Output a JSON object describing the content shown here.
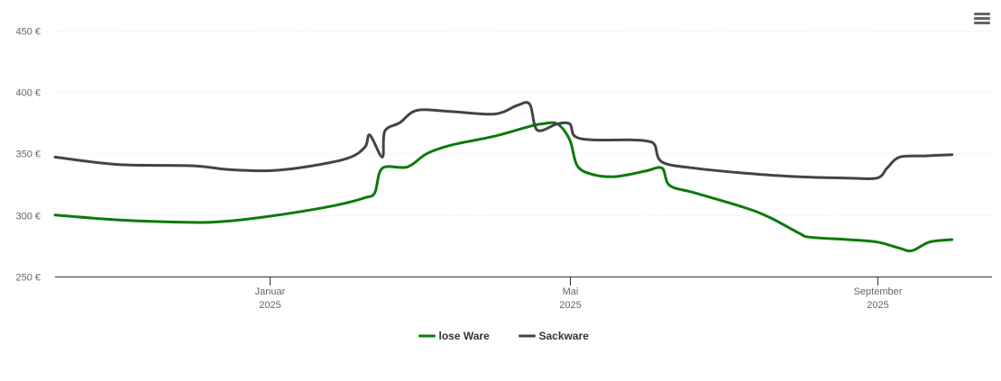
{
  "chart_data": {
    "type": "line",
    "y_ticks": [
      {
        "value": 450,
        "label": "450 €"
      },
      {
        "value": 400,
        "label": "400 €"
      },
      {
        "value": 350,
        "label": "350 €"
      },
      {
        "value": 300,
        "label": "300 €"
      },
      {
        "value": 250,
        "label": "250 €"
      }
    ],
    "ylim": [
      250,
      460
    ],
    "xlim": [
      "2024-10-07",
      "2025-10-17"
    ],
    "x_ticks": [
      {
        "date": "2025-01-01",
        "label": "Januar",
        "sublabel": "2025"
      },
      {
        "date": "2025-05-01",
        "label": "Mai",
        "sublabel": "2025"
      },
      {
        "date": "2025-09-01",
        "label": "September",
        "sublabel": "2025"
      }
    ],
    "grid": true,
    "legend_position": "bottom-center",
    "series": [
      {
        "name": "lose Ware",
        "color": "#0a7a0a",
        "points": [
          [
            "2024-10-07",
            300
          ],
          [
            "2024-11-01",
            296
          ],
          [
            "2024-12-01",
            294
          ],
          [
            "2024-12-15",
            295
          ],
          [
            "2025-01-01",
            299
          ],
          [
            "2025-01-20",
            305
          ],
          [
            "2025-02-01",
            310
          ],
          [
            "2025-02-08",
            314
          ],
          [
            "2025-02-12",
            318
          ],
          [
            "2025-02-15",
            338
          ],
          [
            "2025-02-25",
            339
          ],
          [
            "2025-03-05",
            350
          ],
          [
            "2025-03-15",
            357
          ],
          [
            "2025-04-01",
            364
          ],
          [
            "2025-04-15",
            372
          ],
          [
            "2025-04-20",
            374
          ],
          [
            "2025-04-26",
            374
          ],
          [
            "2025-05-01",
            361
          ],
          [
            "2025-05-04",
            340
          ],
          [
            "2025-05-10",
            333
          ],
          [
            "2025-05-18",
            331
          ],
          [
            "2025-05-25",
            333
          ],
          [
            "2025-06-01",
            336
          ],
          [
            "2025-06-07",
            338
          ],
          [
            "2025-06-10",
            324
          ],
          [
            "2025-06-20",
            318
          ],
          [
            "2025-07-10",
            306
          ],
          [
            "2025-07-20",
            298
          ],
          [
            "2025-08-01",
            285
          ],
          [
            "2025-08-05",
            282
          ],
          [
            "2025-08-20",
            280
          ],
          [
            "2025-09-01",
            278
          ],
          [
            "2025-09-10",
            273
          ],
          [
            "2025-09-15",
            271
          ],
          [
            "2025-09-22",
            278
          ],
          [
            "2025-10-01",
            280
          ]
        ]
      },
      {
        "name": "Sackware",
        "color": "#434348",
        "points": [
          [
            "2024-10-07",
            347
          ],
          [
            "2024-11-01",
            341
          ],
          [
            "2024-12-01",
            340
          ],
          [
            "2024-12-15",
            337
          ],
          [
            "2025-01-01",
            336
          ],
          [
            "2025-01-15",
            339
          ],
          [
            "2025-02-01",
            346
          ],
          [
            "2025-02-08",
            355
          ],
          [
            "2025-02-10",
            365
          ],
          [
            "2025-02-15",
            347
          ],
          [
            "2025-02-16",
            368
          ],
          [
            "2025-02-22",
            375
          ],
          [
            "2025-03-01",
            385
          ],
          [
            "2025-03-15",
            384
          ],
          [
            "2025-04-01",
            382
          ],
          [
            "2025-04-10",
            389
          ],
          [
            "2025-04-15",
            390
          ],
          [
            "2025-04-18",
            369
          ],
          [
            "2025-04-26",
            374
          ],
          [
            "2025-05-01",
            374
          ],
          [
            "2025-05-03",
            364
          ],
          [
            "2025-05-10",
            361
          ],
          [
            "2025-05-25",
            361
          ],
          [
            "2025-06-01",
            360
          ],
          [
            "2025-06-04",
            357
          ],
          [
            "2025-06-07",
            343
          ],
          [
            "2025-06-20",
            338
          ],
          [
            "2025-07-10",
            334
          ],
          [
            "2025-08-01",
            331
          ],
          [
            "2025-08-20",
            330
          ],
          [
            "2025-09-01",
            330
          ],
          [
            "2025-09-05",
            338
          ],
          [
            "2025-09-10",
            347
          ],
          [
            "2025-09-20",
            348
          ],
          [
            "2025-10-01",
            349
          ]
        ]
      }
    ]
  },
  "legend": [
    {
      "label": "lose Ware",
      "color": "#0a7a0a"
    },
    {
      "label": "Sackware",
      "color": "#434348"
    }
  ],
  "menu": {
    "icon": "hamburger-menu-icon"
  }
}
